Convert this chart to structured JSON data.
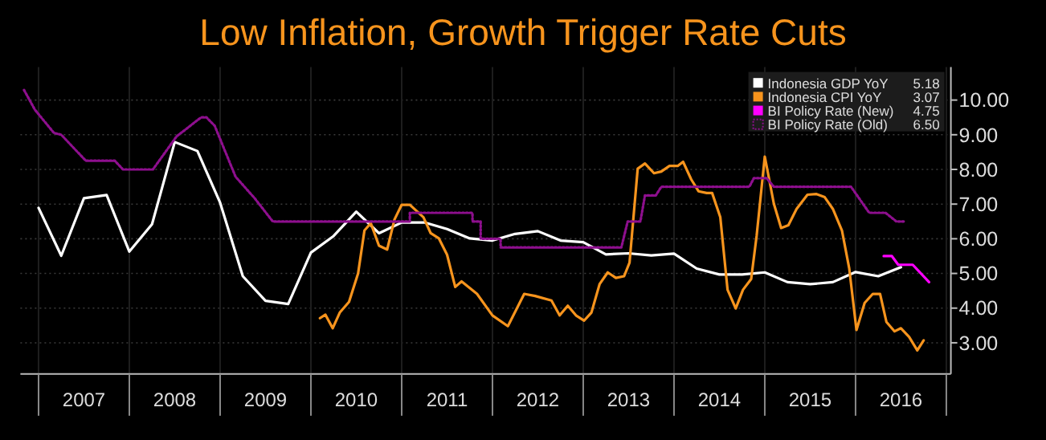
{
  "chart_data": {
    "type": "line",
    "title": "Low Inflation, Growth Trigger Rate Cuts",
    "xlim": [
      2006.8,
      2017.05
    ],
    "xticks": [
      {
        "value": 2007.5,
        "label": "2007"
      },
      {
        "value": 2008.5,
        "label": "2008"
      },
      {
        "value": 2009.5,
        "label": "2009"
      },
      {
        "value": 2010.5,
        "label": "2010"
      },
      {
        "value": 2011.5,
        "label": "2011"
      },
      {
        "value": 2012.5,
        "label": "2012"
      },
      {
        "value": 2013.5,
        "label": "2013"
      },
      {
        "value": 2014.5,
        "label": "2014"
      },
      {
        "value": 2015.5,
        "label": "2015"
      },
      {
        "value": 2016.5,
        "label": "2016"
      }
    ],
    "ylim": [
      2.1,
      10.95
    ],
    "yticks": [
      {
        "value": 3,
        "label": "3.00"
      },
      {
        "value": 4,
        "label": "4.00"
      },
      {
        "value": 5,
        "label": "5.00"
      },
      {
        "value": 6,
        "label": "6.00"
      },
      {
        "value": 7,
        "label": "7.00"
      },
      {
        "value": 8,
        "label": "8.00"
      },
      {
        "value": 9,
        "label": "9.00"
      },
      {
        "value": 10,
        "label": "10.00"
      }
    ],
    "grid": true,
    "legend": "top right",
    "annotations": [
      "5.18",
      "3.07",
      "4.75",
      "6.50"
    ],
    "series": [
      {
        "name": "Indonesia GDP YoY",
        "color": "#ffffff",
        "x": [
          2007.0,
          2007.25,
          2007.5,
          2007.75,
          2008.0,
          2008.25,
          2008.5,
          2008.75,
          2009.0,
          2009.25,
          2009.5,
          2009.75,
          2010.0,
          2010.25,
          2010.5,
          2010.75,
          2011.0,
          2011.25,
          2011.5,
          2011.75,
          2012.0,
          2012.25,
          2012.5,
          2012.75,
          2013.0,
          2013.25,
          2013.5,
          2013.75,
          2014.0,
          2014.25,
          2014.5,
          2014.75,
          2015.0,
          2015.25,
          2015.5,
          2015.75,
          2016.0,
          2016.25,
          2016.5
        ],
        "values": [
          6.89,
          5.51,
          7.17,
          7.26,
          5.63,
          6.42,
          8.79,
          8.53,
          7.04,
          4.92,
          4.21,
          4.12,
          5.6,
          6.08,
          6.78,
          6.16,
          6.47,
          6.47,
          6.28,
          6.01,
          5.95,
          6.14,
          6.22,
          5.95,
          5.9,
          5.55,
          5.58,
          5.52,
          5.57,
          5.14,
          4.97,
          4.97,
          5.03,
          4.75,
          4.69,
          4.75,
          5.04,
          4.92,
          5.18
        ]
      },
      {
        "name": "Indonesia CPI YoY",
        "color": "#f7941d",
        "x": [
          2010.1,
          2010.16,
          2010.24,
          2010.32,
          2010.42,
          2010.52,
          2010.59,
          2010.66,
          2010.75,
          2010.84,
          2010.92,
          2011.0,
          2011.09,
          2011.24,
          2011.32,
          2011.41,
          2011.5,
          2011.59,
          2011.66,
          2011.83,
          2012.0,
          2012.17,
          2012.35,
          2012.47,
          2012.65,
          2012.74,
          2012.83,
          2012.92,
          2013.01,
          2013.09,
          2013.18,
          2013.27,
          2013.36,
          2013.45,
          2013.51,
          2013.6,
          2013.68,
          2013.78,
          2013.86,
          2013.95,
          2014.04,
          2014.1,
          2014.19,
          2014.27,
          2014.36,
          2014.42,
          2014.51,
          2014.59,
          2014.68,
          2014.76,
          2014.85,
          2014.91,
          2015.0,
          2015.1,
          2015.18,
          2015.26,
          2015.35,
          2015.47,
          2015.57,
          2015.66,
          2015.75,
          2015.85,
          2015.93,
          2016.01,
          2016.1,
          2016.19,
          2016.27,
          2016.34,
          2016.43,
          2016.5,
          2016.59,
          2016.68,
          2016.75
        ],
        "values": [
          3.71,
          3.81,
          3.42,
          3.88,
          4.18,
          5.0,
          6.24,
          6.45,
          5.8,
          5.69,
          6.55,
          6.98,
          6.98,
          6.62,
          6.16,
          6.01,
          5.54,
          4.61,
          4.77,
          4.41,
          3.79,
          3.48,
          4.41,
          4.35,
          4.22,
          3.79,
          4.07,
          3.79,
          3.64,
          3.87,
          4.69,
          5.03,
          4.87,
          4.92,
          5.31,
          8.02,
          8.17,
          7.89,
          7.94,
          8.1,
          8.1,
          8.22,
          7.71,
          7.37,
          7.32,
          7.32,
          6.62,
          4.53,
          3.99,
          4.53,
          4.84,
          6.08,
          8.37,
          7.01,
          6.31,
          6.39,
          6.86,
          7.27,
          7.29,
          7.2,
          6.86,
          6.24,
          5.15,
          3.37,
          4.15,
          4.41,
          4.41,
          3.6,
          3.33,
          3.42,
          3.17,
          2.78,
          3.07
        ]
      },
      {
        "name": "BI Policy Rate (New)",
        "color": "#ff00ff",
        "x": [
          2016.31,
          2016.4,
          2016.47,
          2016.63,
          2016.81
        ],
        "values": [
          5.5,
          5.5,
          5.25,
          5.25,
          4.75
        ]
      },
      {
        "name": "BI Policy Rate (Old)",
        "color": "#8e0f8e",
        "line_style": "dotted",
        "x": [
          2006.84,
          2006.96,
          2007.17,
          2007.25,
          2007.52,
          2007.84,
          2007.93,
          2008.26,
          2008.52,
          2008.79,
          2008.85,
          2008.94,
          2009.17,
          2009.38,
          2009.58,
          2011.09,
          2011.09,
          2011.78,
          2011.78,
          2011.87,
          2011.87,
          2012.09,
          2012.09,
          2013.42,
          2013.49,
          2013.63,
          2013.68,
          2013.8,
          2013.86,
          2014.83,
          2014.88,
          2015.02,
          2015.1,
          2015.95,
          2016.15,
          2016.33,
          2016.45,
          2016.53
        ],
        "values": [
          10.29,
          9.72,
          9.05,
          9.0,
          8.25,
          8.25,
          8.0,
          8.0,
          8.95,
          9.5,
          9.5,
          9.26,
          7.79,
          7.17,
          6.5,
          6.5,
          6.75,
          6.75,
          6.5,
          6.5,
          6.0,
          6.0,
          5.75,
          5.75,
          6.5,
          6.5,
          7.25,
          7.25,
          7.5,
          7.5,
          7.75,
          7.75,
          7.5,
          7.5,
          6.75,
          6.75,
          6.5,
          6.5
        ]
      }
    ]
  }
}
